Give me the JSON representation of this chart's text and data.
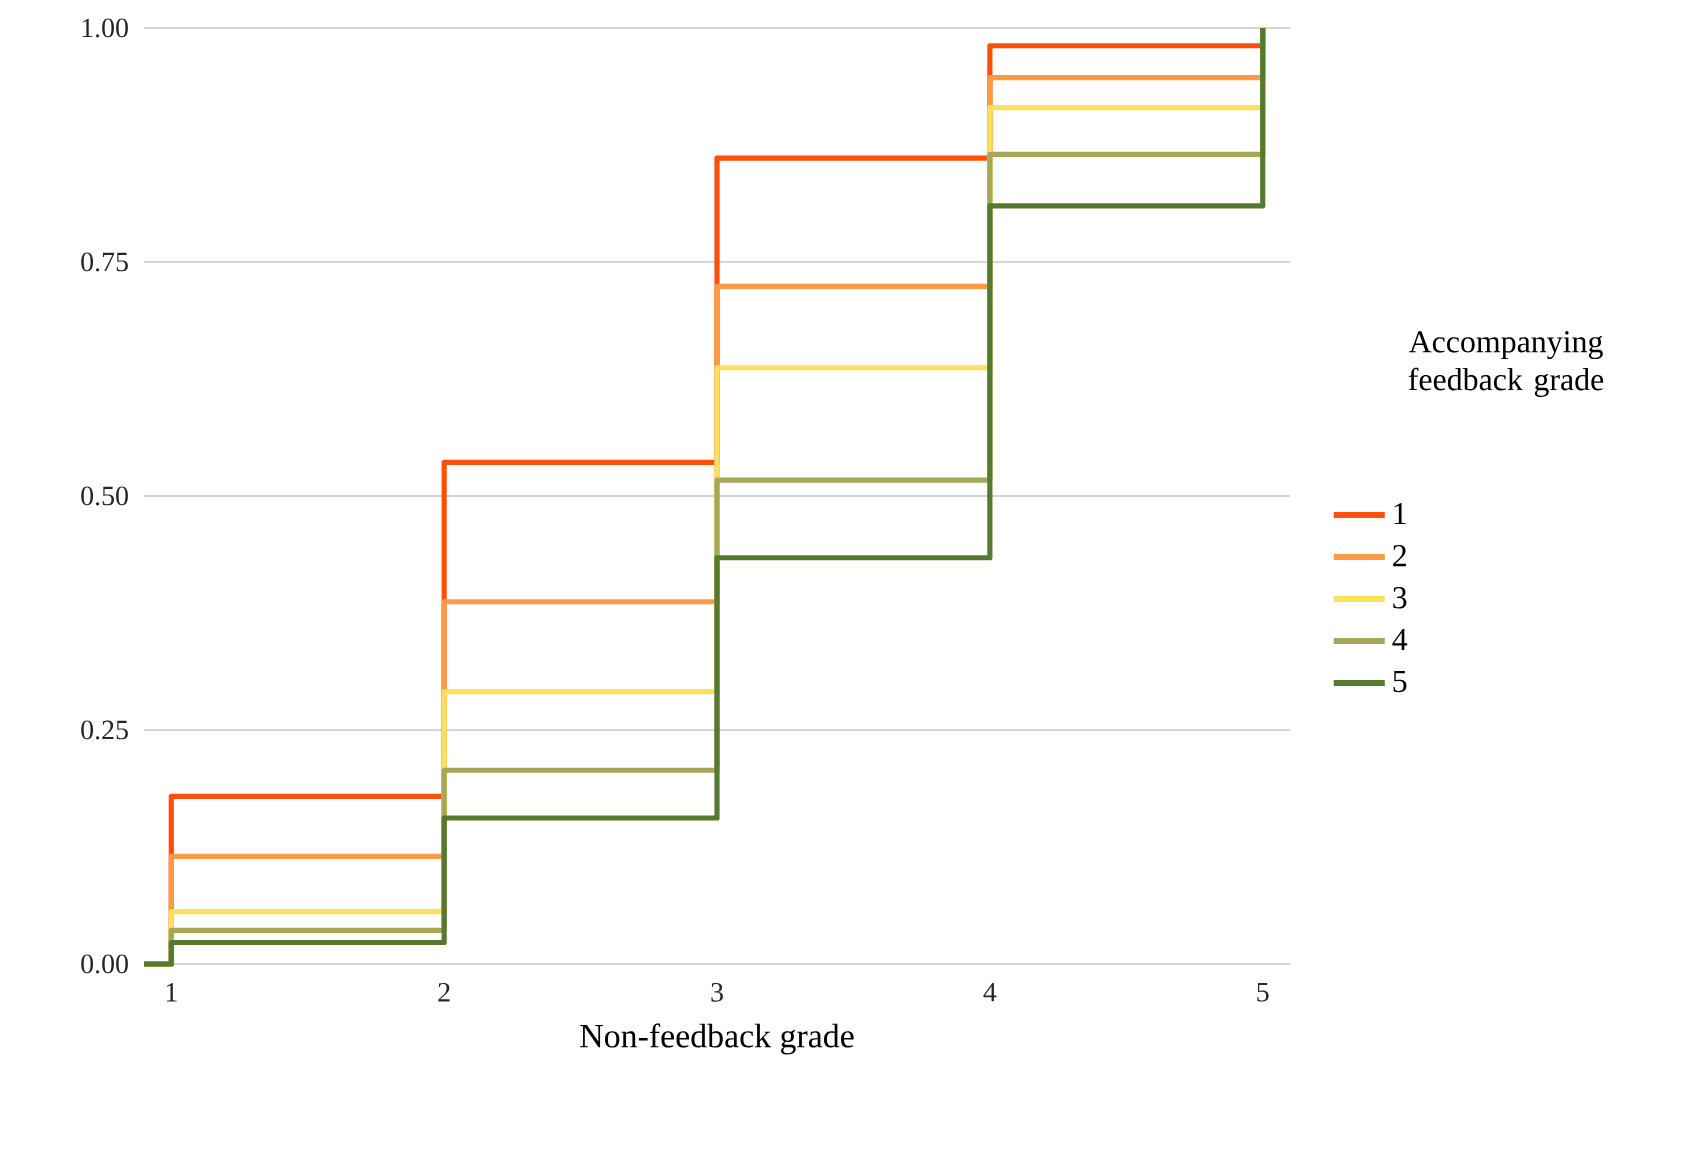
{
  "chart_data": {
    "type": "step",
    "xlabel": "Non-feedback grade",
    "legend_title": "Accompanying feedback grade",
    "x": [
      0.9,
      1,
      2,
      3,
      4,
      5
    ],
    "series": [
      {
        "name": "1",
        "color": "#ff4f0a",
        "values": [
          0,
          0.179,
          0.536,
          0.861,
          0.981,
          1.0
        ]
      },
      {
        "name": "2",
        "color": "#fd9a44",
        "values": [
          0,
          0.115,
          0.387,
          0.724,
          0.947,
          1.0
        ]
      },
      {
        "name": "3",
        "color": "#fde05e",
        "values": [
          0,
          0.056,
          0.291,
          0.637,
          0.915,
          1.0
        ]
      },
      {
        "name": "4",
        "color": "#a6a857",
        "values": [
          0,
          0.036,
          0.207,
          0.517,
          0.865,
          1.0
        ]
      },
      {
        "name": "5",
        "color": "#557a2f",
        "values": [
          0,
          0.023,
          0.156,
          0.434,
          0.81,
          1.0
        ]
      }
    ],
    "xlim": [
      0.9,
      5.1
    ],
    "ylim": [
      0,
      1.0
    ],
    "xticks": [
      1,
      2,
      3,
      4,
      5
    ],
    "yticks": [
      {
        "value": 0,
        "label": "0.00"
      },
      {
        "value": 0.25,
        "label": "0.25"
      },
      {
        "value": 0.5,
        "label": "0.50"
      },
      {
        "value": 0.75,
        "label": "0.75"
      },
      {
        "value": 1.0,
        "label": "1.00"
      }
    ],
    "grid": "y",
    "legend": "right",
    "line_style": "solid"
  }
}
